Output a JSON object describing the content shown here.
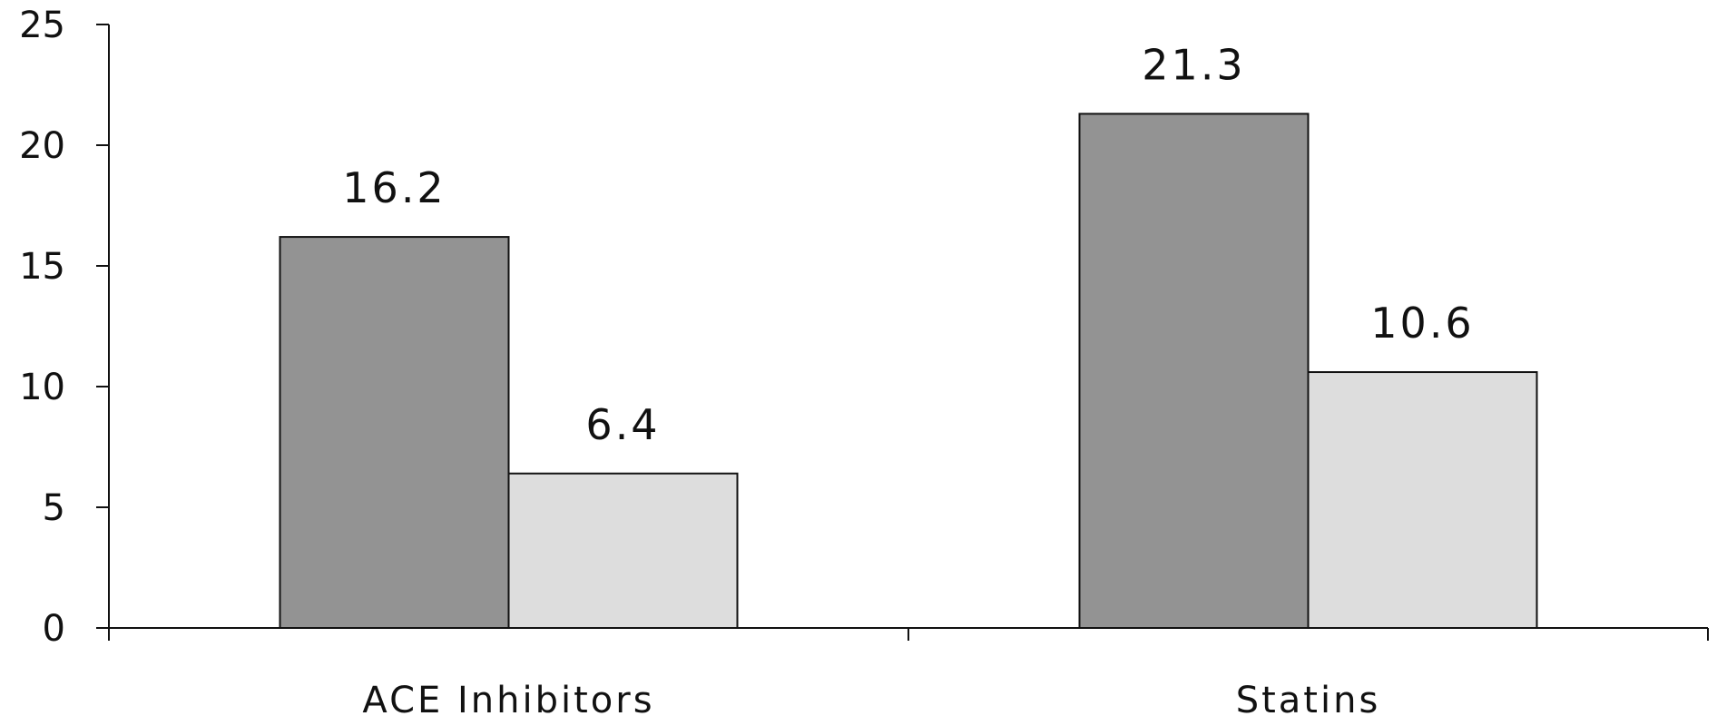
{
  "chart_data": {
    "type": "bar",
    "categories": [
      "ACE Inhibitors",
      "Statins"
    ],
    "series": [
      {
        "values": [
          16.2,
          21.3
        ],
        "color": "#939393"
      },
      {
        "values": [
          6.4,
          10.6
        ],
        "color": "#dddddd"
      }
    ],
    "data_labels": [
      [
        "16.2",
        "21.3"
      ],
      [
        "6.4",
        "10.6"
      ]
    ],
    "yticks": [
      "0",
      "5",
      "10",
      "15",
      "20",
      "25"
    ],
    "ylim": [
      0,
      25
    ],
    "title": "",
    "xlabel": "",
    "ylabel": "",
    "grid": false,
    "legend": "none"
  }
}
